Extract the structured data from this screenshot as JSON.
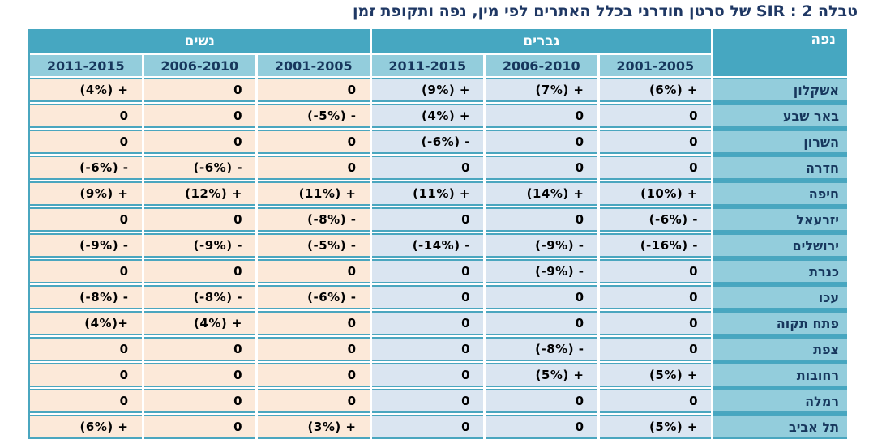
{
  "title": "טבלה 2 : SIR של סרטן חודרני בכלל האתרים לפי מין, נפה ותקופת זמן",
  "colors": {
    "header_teal": "#46A7C1",
    "subheader_teal": "#93CDDC",
    "women_bg": "#FCE9D9",
    "men_bg": "#DAE5F1",
    "grid_line_teal": "#4AA6BF",
    "heading_navy": "#17375D",
    "title_navy": "#1F3864",
    "value_text": "#000000"
  },
  "table": {
    "district_header": "נפה",
    "groups": [
      {
        "key": "men",
        "label": "גברים"
      },
      {
        "key": "women",
        "label": "נשים"
      }
    ],
    "periods_right_to_left": [
      "2001-2005",
      "2006-2010",
      "2011-2015"
    ],
    "rows": [
      {
        "district": "אשקלון",
        "men": [
          "(6%) +",
          "(7%) +",
          "(9%) +"
        ],
        "women": [
          "0",
          "0",
          "(4%) +"
        ]
      },
      {
        "district": "באר שבע",
        "men": [
          "0",
          "0",
          "(4%) +"
        ],
        "women": [
          "(-5%) -",
          "0",
          "0"
        ]
      },
      {
        "district": "השרון",
        "men": [
          "0",
          "0",
          "(-6%) -"
        ],
        "women": [
          "0",
          "0",
          "0"
        ]
      },
      {
        "district": "חדרה",
        "men": [
          "0",
          "0",
          "0"
        ],
        "women": [
          "0",
          "(-6%) -",
          "(-6%) -"
        ]
      },
      {
        "district": "חיפה",
        "men": [
          "(10%) +",
          "(14%) +",
          "(11%) +"
        ],
        "women": [
          "(11%) +",
          "(12%) +",
          "(9%) +"
        ]
      },
      {
        "district": "יזרעאל",
        "men": [
          "(-6%) -",
          "0",
          "0"
        ],
        "women": [
          "(-8%) -",
          "0",
          "0"
        ]
      },
      {
        "district": "ירושלים",
        "men": [
          "(-16%) -",
          "(-9%) -",
          "(-14%) -"
        ],
        "women": [
          "(-5%) -",
          "(-9%) -",
          "(-9%) -"
        ]
      },
      {
        "district": "כנרת",
        "men": [
          "0",
          "(-9%) -",
          "0"
        ],
        "women": [
          "0",
          "0",
          "0"
        ]
      },
      {
        "district": "עכו",
        "men": [
          "0",
          "0",
          "0"
        ],
        "women": [
          "(-6%) -",
          "(-8%) -",
          "(-8%) -"
        ]
      },
      {
        "district": "פתח תקוה",
        "men": [
          "0",
          "0",
          "0"
        ],
        "women": [
          "0",
          "(4%) +",
          "(4%)+"
        ]
      },
      {
        "district": "צפת",
        "men": [
          "0",
          "(-8%) -",
          "0"
        ],
        "women": [
          "0",
          "0",
          "0"
        ]
      },
      {
        "district": "רחובות",
        "men": [
          "(5%) +",
          "(5%) +",
          "0"
        ],
        "women": [
          "0",
          "0",
          "0"
        ]
      },
      {
        "district": "רמלה",
        "men": [
          "0",
          "0",
          "0"
        ],
        "women": [
          "0",
          "0",
          "0"
        ]
      },
      {
        "district": "תל אביב",
        "men": [
          "(5%) +",
          "0",
          "0"
        ],
        "women": [
          "(3%) +",
          "0",
          "(6%) +"
        ]
      }
    ]
  }
}
